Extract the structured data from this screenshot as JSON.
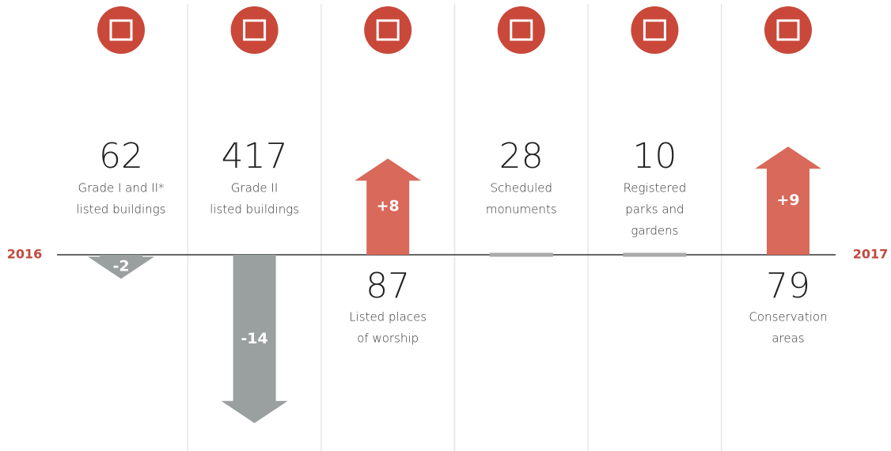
{
  "start_label": "2016",
  "end_label": "2017",
  "items": [
    {
      "count": 62,
      "label": [
        "Grade I and II*",
        "listed buildings"
      ],
      "change": -2
    },
    {
      "count": 417,
      "label": [
        "Grade II",
        "listed buildings"
      ],
      "change": -14
    },
    {
      "count": 87,
      "label": [
        "Listed places",
        "of worship"
      ],
      "change": 8,
      "change_label": "+8"
    },
    {
      "count": 28,
      "label": [
        "Scheduled",
        "monuments"
      ],
      "change": 0
    },
    {
      "count": 10,
      "label": [
        "Registered",
        "parks and",
        "gardens"
      ],
      "change": 0
    },
    {
      "count": 79,
      "label": [
        "Conservation",
        "areas"
      ],
      "change": 9,
      "change_label": "+9"
    }
  ]
}
